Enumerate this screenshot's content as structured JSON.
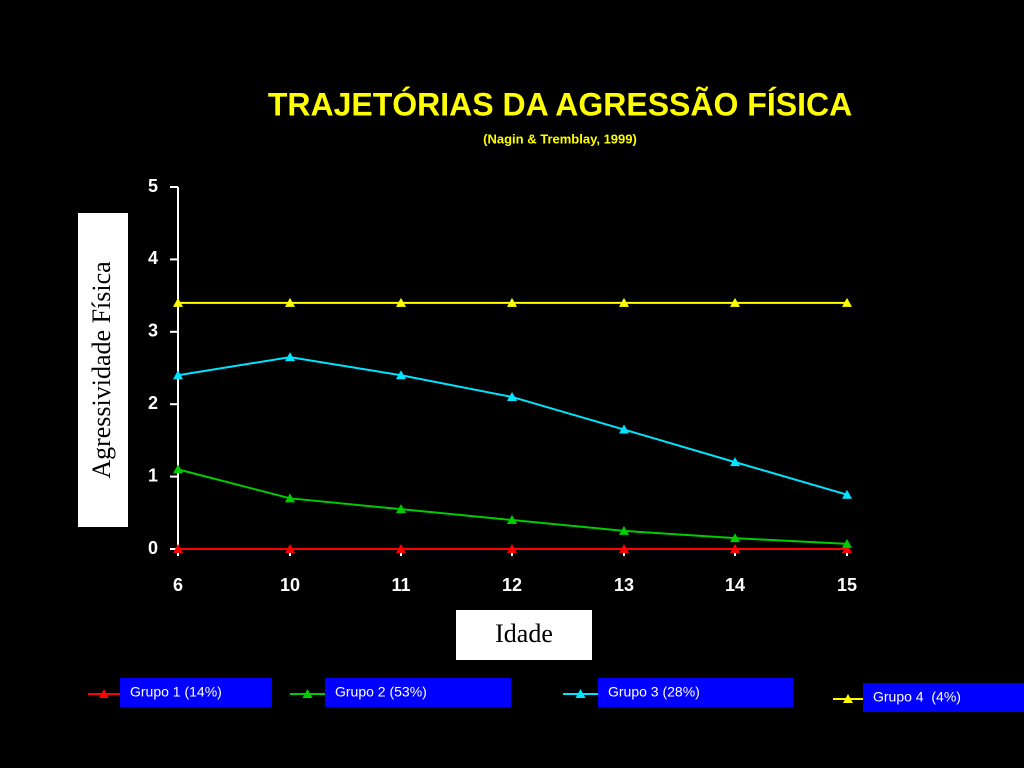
{
  "chart_data": {
    "type": "line",
    "title": "TRAJETÓRIAS DA AGRESSÃO FÍSICA",
    "subtitle": "(Nagin & Tremblay, 1999)",
    "x_label": "Idade",
    "y_label": "Agressividade Física",
    "categories": [
      "6",
      "10",
      "11",
      "12",
      "13",
      "14",
      "15"
    ],
    "ylim": [
      0,
      5
    ],
    "yticks": [
      0,
      1,
      2,
      3,
      4,
      5
    ],
    "legend": "bottom",
    "series": [
      {
        "name": "Grupo 1 (14%)",
        "color": "#ff0000",
        "values": [
          0,
          0,
          0,
          0,
          0,
          0,
          0
        ]
      },
      {
        "name": "Grupo 2 (53%)",
        "color": "#00cc00",
        "values": [
          1.1,
          0.7,
          0.55,
          0.4,
          0.25,
          0.15,
          0.07
        ]
      },
      {
        "name": "Grupo 3 (28%)",
        "color": "#00e5ff",
        "values": [
          2.4,
          2.65,
          2.4,
          2.1,
          1.65,
          1.2,
          0.75
        ]
      },
      {
        "name": "Grupo 4  (4%)",
        "color": "#ffff00",
        "values": [
          3.4,
          3.4,
          3.4,
          3.4,
          3.4,
          3.4,
          3.4
        ]
      }
    ]
  }
}
